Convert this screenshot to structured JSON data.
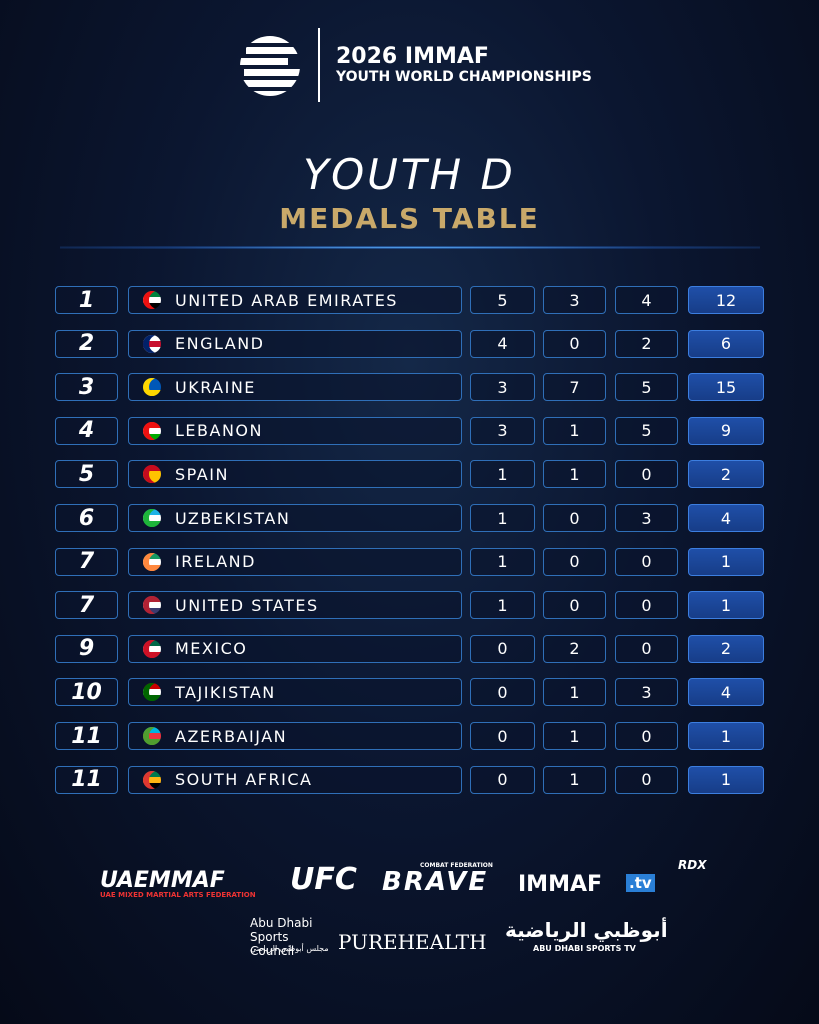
{
  "header": {
    "event_line1": "2026 IMMAF",
    "event_line2": "YOUTH WORLD CHAMPIONSHIPS",
    "title": "YOUTH D",
    "subtitle": "MEDALS TABLE"
  },
  "table": {
    "rows": [
      [
        1,
        "UNITED ARAB EMIRATES",
        5,
        3,
        4,
        12
      ],
      [
        2,
        "ENGLAND",
        4,
        0,
        2,
        6
      ],
      [
        3,
        "UKRAINE",
        3,
        7,
        5,
        15
      ],
      [
        4,
        "LEBANON",
        3,
        1,
        5,
        9
      ],
      [
        5,
        "SPAIN",
        1,
        1,
        0,
        2
      ],
      [
        6,
        "UZBEKISTAN",
        1,
        0,
        3,
        4
      ],
      [
        7,
        "IRELAND",
        1,
        0,
        0,
        1
      ],
      [
        7,
        "UNITED STATES",
        1,
        0,
        0,
        1
      ],
      [
        9,
        "MEXICO",
        0,
        2,
        0,
        2
      ],
      [
        10,
        "TAJIKISTAN",
        0,
        1,
        3,
        4
      ],
      [
        11,
        "AZERBAIJAN",
        0,
        1,
        0,
        1
      ],
      [
        11,
        "SOUTH AFRICA",
        0,
        1,
        0,
        1
      ]
    ]
  },
  "sponsors": {
    "uaemmaf": "UAEMMAF",
    "uaemmaf_sub": "UAE MIXED MARTIAL ARTS FEDERATION",
    "ufc": "UFC",
    "brave": "BRAVE",
    "brave_sub": "COMBAT FEDERATION",
    "immaf": "IMMAF",
    "immaf_tv": ".tv",
    "rdx": "RDX",
    "adsc": "Abu Dhabi Sports Council",
    "adsc_ar": "مجلس أبوظبي الرياضي",
    "purehealth": "PUREHEALTH",
    "adtv_ar": "أبوظبي الرياضية",
    "adtv": "ABU DHABI SPORTS TV"
  }
}
